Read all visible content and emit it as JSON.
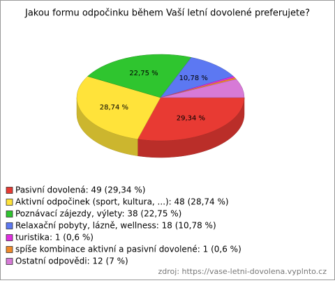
{
  "chart_data": {
    "type": "pie3d",
    "title": "Jakou formu odpočinku během Vaší letní dovolené preferujete?",
    "categories": [
      "Pasivní dovolená",
      "Aktivní odpočinek (sport, kultura, ...)",
      "Poznávací zájezdy, výlety",
      "Relaxační pobyty, lázně, wellness",
      "turistika",
      "spíše kombinace aktivní a pasivní dovolené",
      "Ostatní odpovědi"
    ],
    "values": [
      29.34,
      28.74,
      22.75,
      10.78,
      0.6,
      0.6,
      7
    ],
    "value_labels": [
      "29,34 %",
      "28,74 %",
      "22,75 %",
      "10,78 %",
      null,
      null,
      null
    ],
    "counts": [
      49,
      48,
      38,
      18,
      1,
      1,
      12
    ],
    "legend_labels": [
      "Pasivní dovolená: 49 (29,34 %)",
      "Aktivní odpočinek (sport, kultura, ...): 48 (28,74 %)",
      "Poznávací zájezdy, výlety: 38 (22,75 %)",
      "Relaxační pobyty, lázně, wellness: 18 (10,78 %)",
      "turistika: 1 (0,6 %)",
      "spíše kombinace aktivní a pasivní dovolené: 1 (0,6 %)",
      "Ostatní odpovědi: 12 (7 %)"
    ],
    "colors": [
      "#e83a33",
      "#ffe33a",
      "#2fc52f",
      "#5c78f2",
      "#e030e0",
      "#f08a2a",
      "#d77ad7"
    ],
    "source": "zdroj: https://vase-letni-dovolena.vyplnto.cz"
  }
}
